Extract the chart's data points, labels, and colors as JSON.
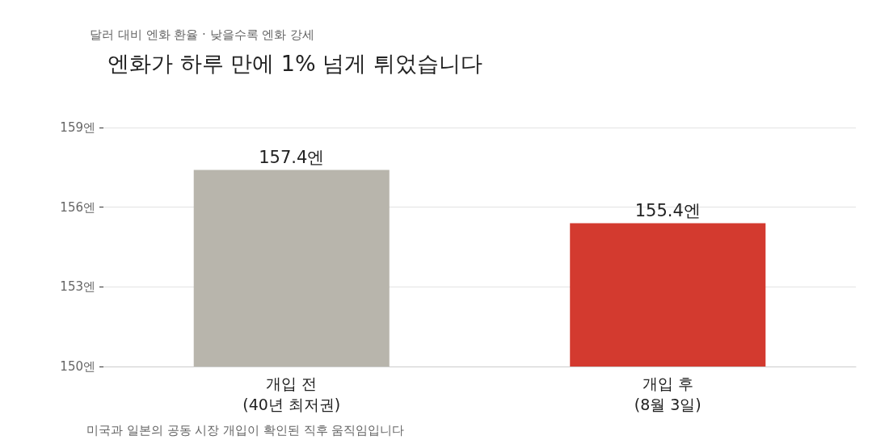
{
  "chart_data": {
    "type": "bar",
    "title": "엔화가 하루 만에 1% 넘게 튀었습니다",
    "subtitle": "달러 대비 엔화 환율 · 낮을수록 엔화 강세",
    "annotations": [
      "미국과 일본의 공동 시장 개입이 확인된 직후 움직임입니다"
    ],
    "categories": [
      "개입 전\n(40년 최저권)",
      "개입 후\n(8월 3일)"
    ],
    "values": [
      157.4,
      155.4
    ],
    "colors": [
      "#b8b5ac",
      "#d33a2f"
    ],
    "value_labels": [
      "157.4엔",
      "155.4엔"
    ],
    "ylim": [
      150,
      159
    ],
    "yticks": [
      {
        "value": 150,
        "label": "150엔"
      },
      {
        "value": 153,
        "label": "153엔"
      },
      {
        "value": 156,
        "label": "156엔"
      },
      {
        "value": 159,
        "label": "159엔"
      }
    ],
    "grid": "y"
  }
}
